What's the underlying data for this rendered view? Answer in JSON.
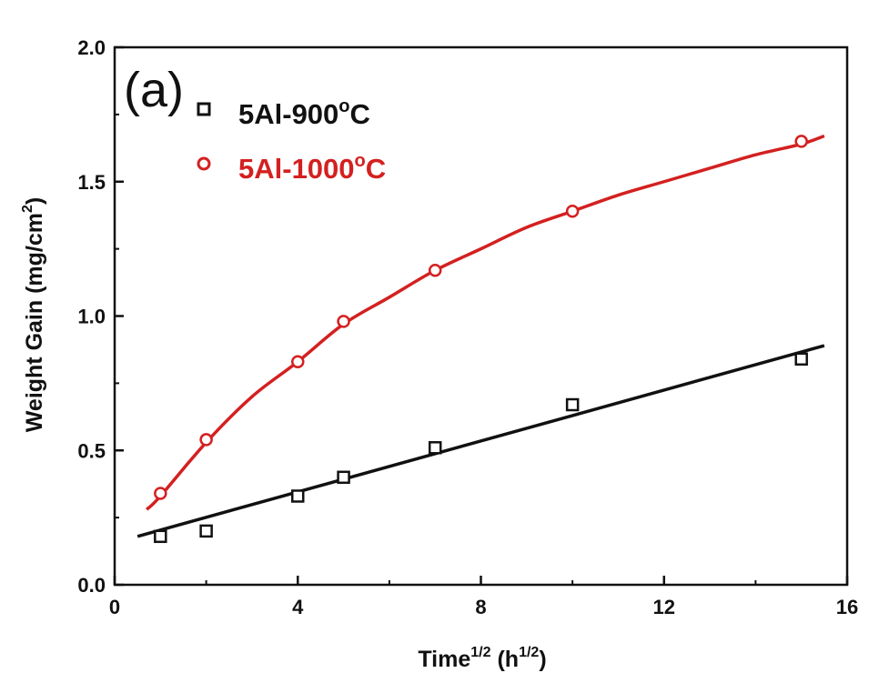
{
  "chart_data": {
    "type": "scatter",
    "panel_label": "(a)",
    "xlabel": {
      "main": "Time",
      "sup1": "1/2",
      "mid": " (h",
      "sup2": "1/2",
      "end": ")"
    },
    "ylabel": {
      "main": "Weight Gain (mg/cm",
      "sup": "2",
      "end": ")"
    },
    "xlim": [
      0,
      16
    ],
    "ylim": [
      0.0,
      2.0
    ],
    "x_ticks": [
      0,
      4,
      8,
      12,
      16
    ],
    "x_tick_labels": [
      "0",
      "4",
      "8",
      "12",
      "16"
    ],
    "y_ticks": [
      0.0,
      0.5,
      1.0,
      1.5,
      2.0
    ],
    "y_tick_labels": [
      "0.0",
      "0.5",
      "1.0",
      "1.5",
      "2.0"
    ],
    "grid": false,
    "legend_position": "top-left",
    "series": [
      {
        "name_main": "5Al-900",
        "name_sup": "o",
        "name_end": "C",
        "color": "#111111",
        "marker": "square",
        "x": [
          1,
          2,
          4,
          5,
          7,
          10,
          15
        ],
        "y": [
          0.18,
          0.2,
          0.33,
          0.4,
          0.51,
          0.67,
          0.84
        ],
        "fit": {
          "kind": "linear",
          "x": [
            0.5,
            15.5
          ],
          "y": [
            0.18,
            0.89
          ]
        }
      },
      {
        "name_main": "5Al-1000",
        "name_sup": "o",
        "name_end": "C",
        "color": "#d42020",
        "marker": "circle",
        "x": [
          1,
          2,
          4,
          5,
          7,
          10,
          15
        ],
        "y": [
          0.34,
          0.54,
          0.83,
          0.98,
          1.17,
          1.39,
          1.65
        ],
        "fit": {
          "kind": "curve",
          "x": [
            0.7,
            1,
            2,
            3,
            4,
            5,
            6,
            7,
            8,
            9,
            10,
            11,
            12,
            13,
            14,
            15,
            15.5
          ],
          "y": [
            0.28,
            0.33,
            0.53,
            0.7,
            0.83,
            0.97,
            1.07,
            1.17,
            1.25,
            1.33,
            1.39,
            1.45,
            1.5,
            1.55,
            1.6,
            1.64,
            1.67
          ]
        }
      }
    ]
  }
}
